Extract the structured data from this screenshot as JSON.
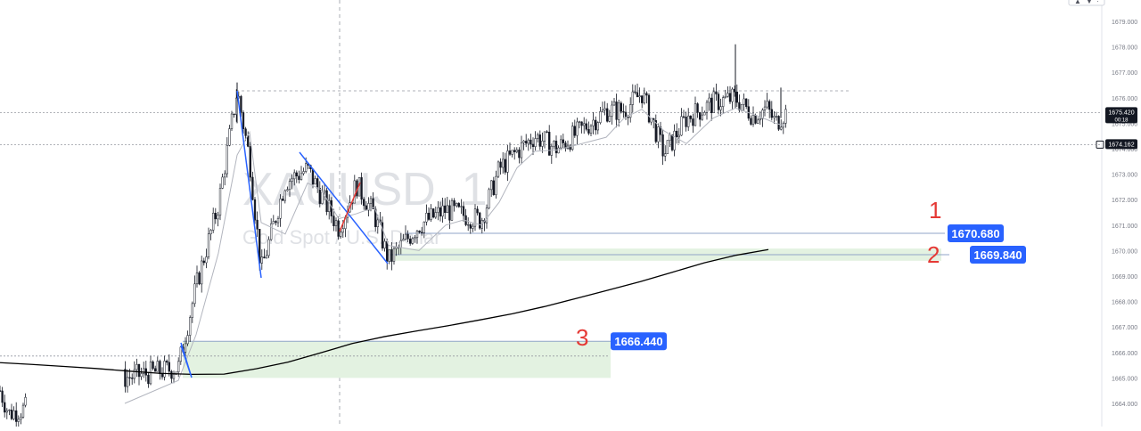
{
  "watermark": {
    "symbol": "XAUUSD, 1",
    "description": "Gold Spot / U.S. Dollar"
  },
  "chart_data": {
    "type": "candlestick",
    "y_axis": {
      "ticks": [
        "1664.000",
        "1665.000",
        "1666.000",
        "1667.000",
        "1668.000",
        "1669.000",
        "1670.000",
        "1671.000",
        "1672.000",
        "1673.000",
        "1674.000",
        "1675.000",
        "1676.000",
        "1677.000",
        "1678.000",
        "1679.000"
      ],
      "range": [
        1663.5,
        1679.8
      ]
    },
    "price_labels": [
      {
        "value": "1675.420",
        "sub": "00:18",
        "color": "#131722"
      },
      {
        "value": "1674.162",
        "color": "#131722"
      }
    ],
    "levels": [
      {
        "name": "level-1",
        "price": 1670.68,
        "label": "1670.680",
        "tag_color": "#2962ff"
      },
      {
        "name": "level-2",
        "price": 1669.84,
        "label": "1669.840",
        "tag_color": "#2962ff"
      },
      {
        "name": "level-3",
        "price": 1666.44,
        "label": "1666.440",
        "tag_color": "#2962ff"
      }
    ],
    "zones": [
      {
        "name": "zone-2",
        "top": 1670.08,
        "bottom": 1669.6,
        "color": "#e3f2e1"
      },
      {
        "name": "zone-3",
        "top": 1666.44,
        "bottom": 1665.0,
        "color": "#e3f2e1"
      }
    ],
    "annotations": [
      "1",
      "2",
      "3"
    ],
    "annotation_color": "#e53935",
    "line_color": "#2962ff",
    "candle_color": "#131722",
    "ma_color": "#000000",
    "ma_series": [
      1665.6,
      1665.53,
      1665.45,
      1665.37,
      1665.27,
      1665.18,
      1665.14,
      1665.15,
      1665.36,
      1665.62,
      1665.98,
      1666.35,
      1666.62,
      1666.84,
      1667.05,
      1667.28,
      1667.52,
      1667.8,
      1668.12,
      1668.45,
      1668.78,
      1669.15,
      1669.52,
      1669.82,
      1670.04
    ],
    "close_series": [
      1664.5,
      1663.6,
      1665.0,
      1665.4,
      1668.6,
      1671.8,
      1676.3,
      1673.6,
      1669.2,
      1672.7,
      1673.2,
      1672.2,
      1670.9,
      1672.6,
      1671.4,
      1669.6,
      1671.0,
      1671.6,
      1671.4,
      1671.2,
      1673.2,
      1673.9,
      1674.5,
      1674.0,
      1675.5,
      1675.5,
      1676.2,
      1673.8,
      1675.2,
      1675.8,
      1676.0,
      1675.3,
      1675.6,
      1675.0,
      1675.4
    ]
  }
}
